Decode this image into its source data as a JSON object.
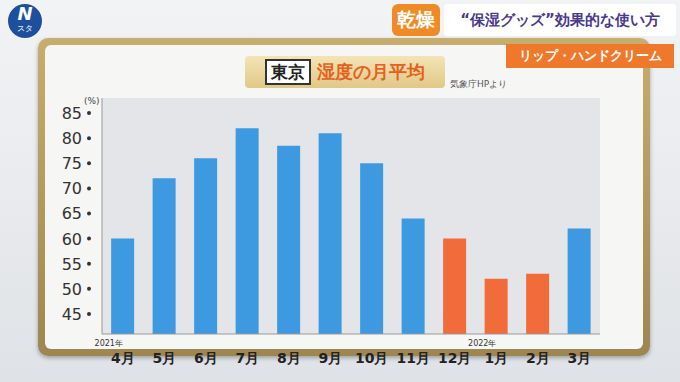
{
  "header": {
    "logo": "N",
    "logo_sub": "スタ",
    "badge": "乾燥",
    "headline": "“保湿グッズ”効果的な使い方",
    "subheadline": "リップ・ハンドクリーム"
  },
  "chart_data": {
    "type": "bar",
    "title_tag": "東京",
    "title": "湿度の月平均",
    "source": "気象庁HPより",
    "y_label": "(%)",
    "categories": [
      "4月",
      "5月",
      "6月",
      "7月",
      "8月",
      "9月",
      "10月",
      "11月",
      "12月",
      "1月",
      "2月",
      "3月"
    ],
    "values": [
      60,
      72,
      76,
      82,
      78.5,
      81,
      75,
      64,
      60,
      52,
      53,
      62
    ],
    "colors": [
      "#3d9ae0",
      "#3d9ae0",
      "#3d9ae0",
      "#3d9ae0",
      "#3d9ae0",
      "#3d9ae0",
      "#3d9ae0",
      "#3d9ae0",
      "#f26b3a",
      "#f26b3a",
      "#f26b3a",
      "#3d9ae0"
    ],
    "ylim": [
      41,
      88
    ],
    "yticks": [
      45,
      50,
      55,
      60,
      65,
      70,
      75,
      80,
      85
    ],
    "grid": false,
    "annotations": [
      {
        "category": "4月",
        "text": "2021年"
      },
      {
        "category": "1月",
        "text": "2022年"
      }
    ]
  }
}
